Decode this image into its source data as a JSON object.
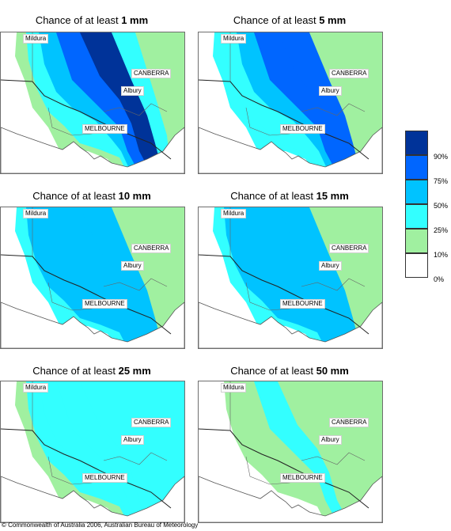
{
  "panels": [
    {
      "prefix": "Chance of at least ",
      "amount": "1 mm",
      "levels": [
        1,
        2,
        3,
        4,
        5,
        2,
        1,
        0,
        0
      ]
    },
    {
      "prefix": "Chance of at least ",
      "amount": "5 mm",
      "levels": [
        2,
        2,
        3,
        4,
        4,
        1,
        0,
        0,
        0
      ]
    },
    {
      "prefix": "Chance of at least ",
      "amount": "10 mm",
      "levels": [
        2,
        3,
        3,
        3,
        3,
        1,
        0,
        0,
        0
      ]
    },
    {
      "prefix": "Chance of at least ",
      "amount": "15 mm",
      "levels": [
        2,
        3,
        3,
        3,
        3,
        1,
        0,
        0,
        0
      ]
    },
    {
      "prefix": "Chance of at least ",
      "amount": "25 mm",
      "levels": [
        1,
        2,
        2,
        2,
        2,
        0,
        0,
        0,
        0
      ]
    },
    {
      "prefix": "Chance of at least ",
      "amount": "50 mm",
      "levels": [
        0,
        1,
        1,
        2,
        1,
        0,
        0,
        0,
        0
      ]
    }
  ],
  "cities": {
    "mildura": "Mildura",
    "canberra": "CANBERRA",
    "albury": "Albury",
    "melbourne": "MELBOURNE"
  },
  "legend": {
    "colors": [
      "#ffffff",
      "#a0f0a0",
      "#33ffff",
      "#00c3ff",
      "#0066ff",
      "#003399"
    ],
    "labels": [
      "0%",
      "10%",
      "25%",
      "50%",
      "75%",
      "90%"
    ]
  },
  "copyright": "© Commonwealth of Australia 2006, Australian Bureau of Meteorology"
}
